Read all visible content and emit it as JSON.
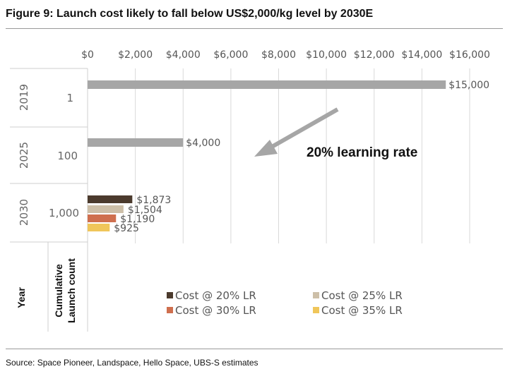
{
  "title": "Figure 9: Launch cost likely to fall below US$2,000/kg level by 2030E",
  "source": "Source: Space Pioneer, Landspace, Hello Space, UBS-S estimates",
  "colors": {
    "gray": "#a6a6a6",
    "cost20": "#4b3a2d",
    "cost25": "#cdbfa8",
    "cost30": "#cf6f4e",
    "cost35": "#f0c65a",
    "arrow": "#a6a6a6"
  },
  "chart_data": {
    "type": "bar",
    "orientation": "horizontal",
    "title": "Figure 9: Launch cost likely to fall below US$2,000/kg level by 2030E",
    "xlim": [
      0,
      16000
    ],
    "x_ticks": [
      "$0",
      "$2,000",
      "$4,000",
      "$6,000",
      "$8,000",
      "$10,000",
      "$12,000",
      "$14,000",
      "$16,000"
    ],
    "x_tick_values": [
      0,
      2000,
      4000,
      6000,
      8000,
      10000,
      12000,
      14000,
      16000
    ],
    "axis_position": "top",
    "grid": true,
    "category_headers": [
      "Year",
      "Cumulative Launch count"
    ],
    "groups": [
      {
        "year": "2019",
        "launch_count": "1",
        "bars": [
          {
            "value": 15000,
            "label": "$15,000",
            "color_key": "gray"
          }
        ]
      },
      {
        "year": "2025",
        "launch_count": "100",
        "bars": [
          {
            "value": 4000,
            "label": "$4,000",
            "color_key": "gray"
          }
        ]
      },
      {
        "year": "2030",
        "launch_count": "1,000",
        "bars": [
          {
            "value": 1873,
            "label": "$1,873",
            "series": "Cost @ 20% LR",
            "color_key": "cost20"
          },
          {
            "value": 1504,
            "label": "$1,504",
            "series": "Cost @ 25% LR",
            "color_key": "cost25"
          },
          {
            "value": 1190,
            "label": "$1,190",
            "series": "Cost @ 30% LR",
            "color_key": "cost30"
          },
          {
            "value": 925,
            "label": "$925",
            "series": "Cost @ 35% LR",
            "color_key": "cost35"
          }
        ]
      }
    ],
    "legend": [
      {
        "name": "Cost @ 20% LR",
        "color_key": "cost20"
      },
      {
        "name": "Cost @ 25% LR",
        "color_key": "cost25"
      },
      {
        "name": "Cost @ 30% LR",
        "color_key": "cost30"
      },
      {
        "name": "Cost @ 35% LR",
        "color_key": "cost35"
      }
    ],
    "legend_placement": "bottom",
    "annotations": [
      "20% learning rate"
    ]
  }
}
